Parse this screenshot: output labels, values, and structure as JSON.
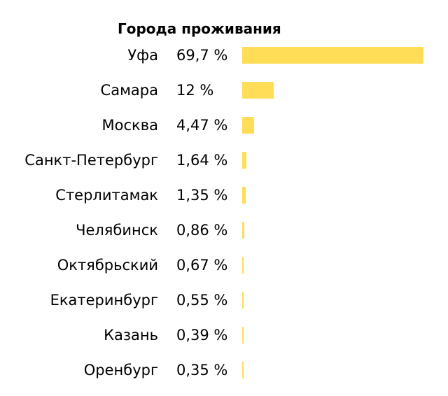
{
  "chart_data": {
    "type": "bar",
    "orientation": "horizontal",
    "title": "Города проживания",
    "categories": [
      "Уфа",
      "Самара",
      "Москва",
      "Санкт-Петербург",
      "Стерлитамак",
      "Челябинск",
      "Октябрьский",
      "Екатеринбург",
      "Казань",
      "Оренбург"
    ],
    "values": [
      69.7,
      12,
      4.47,
      1.64,
      1.35,
      0.86,
      0.67,
      0.55,
      0.39,
      0.35
    ],
    "value_labels": [
      "69,7 %",
      "12 %",
      "4,47 %",
      "1,64 %",
      "1,35 %",
      "0,86 %",
      "0,67 %",
      "0,55 %",
      "0,39 %",
      "0,35 %"
    ],
    "unit": "%",
    "xlim": [
      0,
      69.7
    ],
    "grid": false,
    "bar_color": "#ffdd57"
  }
}
